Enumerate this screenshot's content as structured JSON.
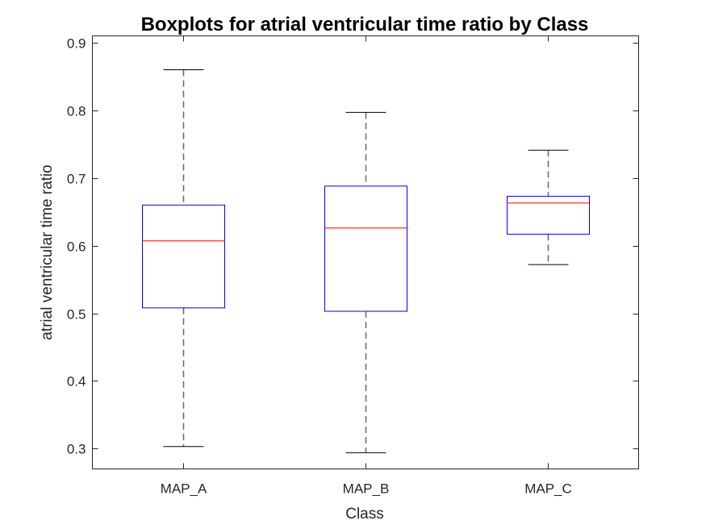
{
  "chart_data": {
    "type": "boxplot",
    "title": "Boxplots for atrial ventricular time ratio by Class",
    "xlabel": "Class",
    "ylabel": "atrial ventricular time ratio",
    "ylim": [
      0.27,
      0.91
    ],
    "yticks": [
      0.3,
      0.4,
      0.5,
      0.6,
      0.7,
      0.8,
      0.9
    ],
    "ytick_labels": [
      "0.3",
      "0.4",
      "0.5",
      "0.6",
      "0.7",
      "0.8",
      "0.9"
    ],
    "categories": [
      "MAP_A",
      "MAP_B",
      "MAP_C"
    ],
    "boxes": [
      {
        "category": "MAP_A",
        "whisker_low": 0.303,
        "q1": 0.508,
        "median": 0.607,
        "q3": 0.66,
        "whisker_high": 0.86
      },
      {
        "category": "MAP_B",
        "whisker_low": 0.294,
        "q1": 0.503,
        "median": 0.626,
        "q3": 0.688,
        "whisker_high": 0.797
      },
      {
        "category": "MAP_C",
        "whisker_low": 0.572,
        "q1": 0.617,
        "median": 0.663,
        "q3": 0.673,
        "whisker_high": 0.741
      }
    ],
    "grid": false,
    "colors": {
      "box": "#0000ff",
      "median": "#ff0000",
      "whisker": "#000000",
      "axis": "#262626"
    }
  }
}
